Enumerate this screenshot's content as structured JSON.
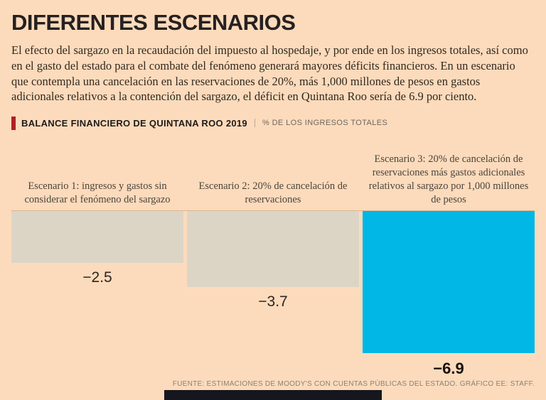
{
  "header": {
    "title": "DIFERENTES ESCENARIOS",
    "intro": "El efecto del sargazo en la recaudación del impuesto al hospedaje, y por ende en los ingresos totales, así como en el gasto del estado para el combate del fenómeno generará mayores déficits financieros. En un escenario que contempla una cancelación en las reservaciones de 20%, más 1,000 millones de pesos en gastos adicionales relativos a la contención del sargazo, el déficit en Quintana Roo sería de 6.9 por ciento."
  },
  "chart_header": {
    "title": "BALANCE FINANCIERO DE QUINTANA ROO 2019",
    "unit": "% DE LOS INGRESOS TOTALES",
    "accent_color": "#b01f24"
  },
  "chart_data": {
    "type": "bar",
    "title": "BALANCE FINANCIERO DE QUINTANA ROO 2019",
    "ylabel": "% DE LOS INGRESOS TOTALES",
    "categories": [
      "Escenario 1: ingresos y gastos sin considerar el fenómeno del sargazo",
      "Escenario 2: 20% de cancelación de reservaciones",
      "Escenario 3: 20% de cancelación de reservaciones más gastos adicionales relativos al sargazo por 1,000 millones de pesos"
    ],
    "values": [
      -2.5,
      -3.7,
      -6.9
    ],
    "value_labels": [
      "−2.5",
      "−3.7",
      "−6.9"
    ],
    "ylim": [
      -7.5,
      0
    ],
    "bar_colors": [
      "#dcd5c6",
      "#dcd5c6",
      "#00b7e6"
    ],
    "pixels_per_unit": 29,
    "grid": false,
    "legend": false,
    "orientation": "vertical-negative"
  },
  "footer": {
    "source": "FUENTE: ESTIMACIONES DE MOODY'S CON CUENTAS PÚBLICAS DEL ESTADO. GRÁFICO EE: STAFF."
  }
}
